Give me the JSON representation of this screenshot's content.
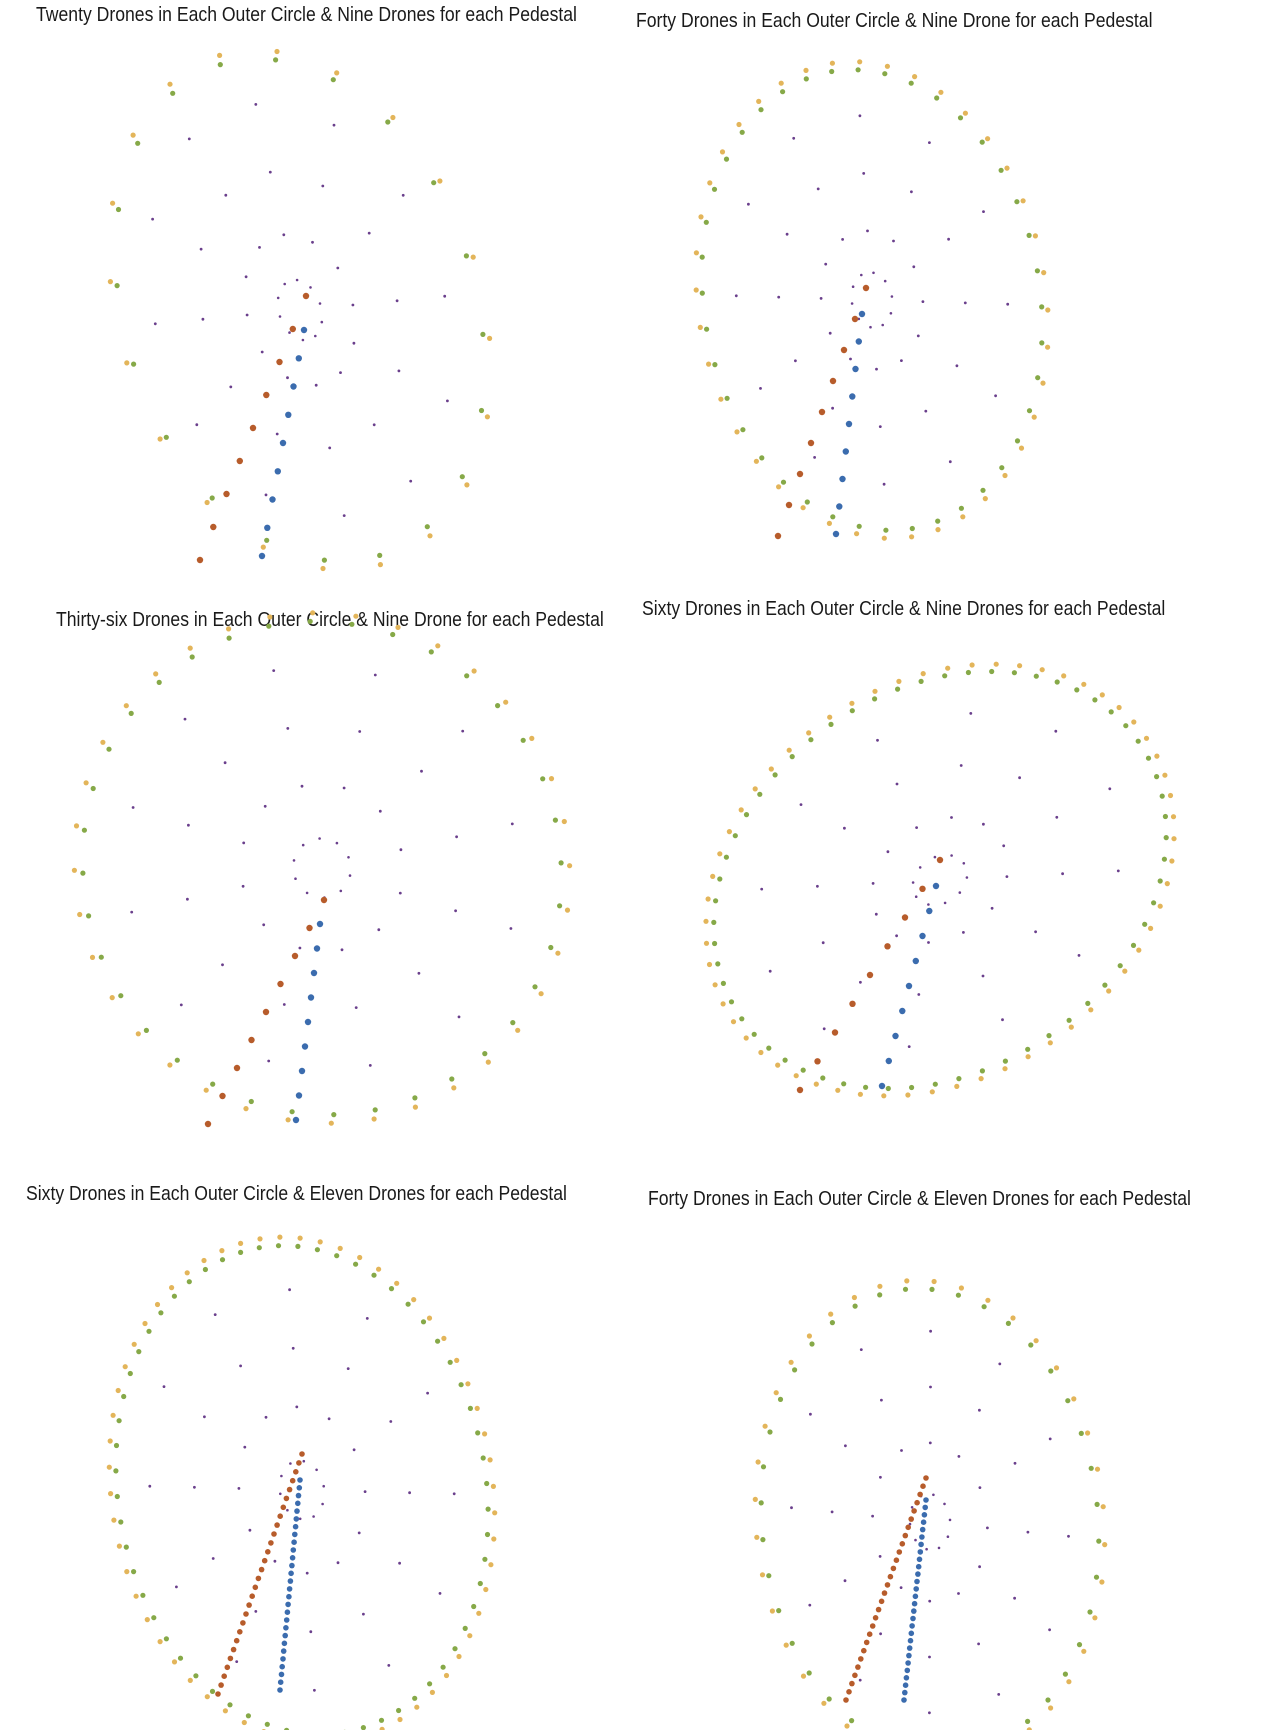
{
  "colors": {
    "outer_a": "#e3b55a",
    "outer_b": "#86a948",
    "inner": "#6a3f8c",
    "pedestal_left": "#b75c2b",
    "pedestal_right": "#3b6cae"
  },
  "panels": [
    {
      "title": "Twenty Drones in Each Outer Circle & Nine Drones for each Pedestal",
      "outer_drones": 20,
      "pedestal_drones": 9
    },
    {
      "title": "Forty Drones in Each Outer Circle & Nine Drone for each Pedestal",
      "outer_drones": 40,
      "pedestal_drones": 9
    },
    {
      "title": "Thirty-six Drones in Each Outer Circle & Nine Drone for each Pedestal",
      "outer_drones": 36,
      "pedestal_drones": 9
    },
    {
      "title": "Sixty Drones in Each Outer Circle & Nine Drones for each Pedestal",
      "outer_drones": 60,
      "pedestal_drones": 9
    },
    {
      "title": "Sixty Drones in Each Outer Circle & Eleven Drones for each Pedestal",
      "outer_drones": 60,
      "pedestal_drones": 11
    },
    {
      "title": "Forty Drones in Each Outer Circle & Eleven Drones for each Pedestal",
      "outer_drones": 40,
      "pedestal_drones": 11
    }
  ]
}
